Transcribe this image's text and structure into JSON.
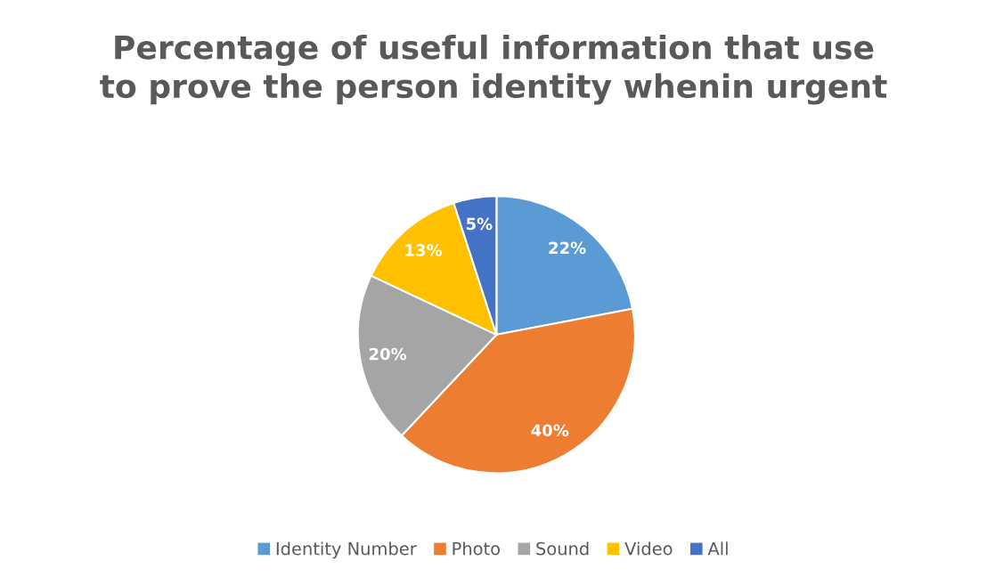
{
  "chart_data": {
    "type": "pie",
    "title": "Percentage of useful information that use\nto prove the person identity whenin urgent",
    "categories": [
      "Identity Number",
      "Photo",
      "Sound",
      "Video",
      "All"
    ],
    "values": [
      22,
      40,
      20,
      13,
      5
    ],
    "colors": [
      "#5b9bd5",
      "#ed7d31",
      "#a5a5a5",
      "#ffc000",
      "#4472c4"
    ],
    "value_labels": [
      "22%",
      "40%",
      "20%",
      "13%",
      "5%"
    ],
    "legend": "bottom"
  }
}
